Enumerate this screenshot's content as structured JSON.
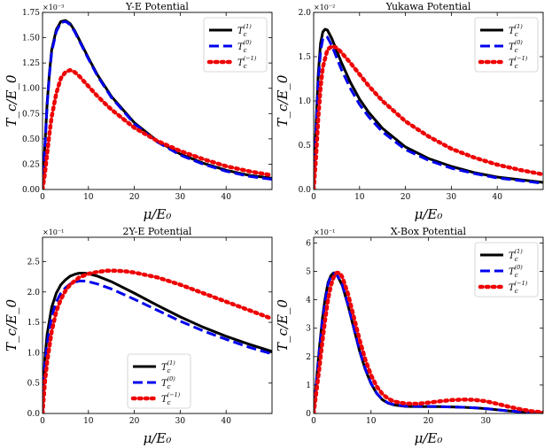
{
  "colors": {
    "black": "#000000",
    "blue": "#0000ee",
    "red": "#ee0000"
  },
  "chart_data": [
    {
      "type": "line",
      "title": "Y-E Potential",
      "xlabel": "μ/E₀",
      "ylabel": "T_c/E_0",
      "multiplier": "×10⁻³",
      "xlim": [
        0,
        50
      ],
      "ylim": [
        0,
        1.75
      ],
      "xticks": [
        0,
        10,
        20,
        30,
        40
      ],
      "yticks": [
        0.0,
        0.25,
        0.5,
        0.75,
        1.0,
        1.25,
        1.5,
        1.75
      ],
      "ytick_labels": [
        "0.00",
        "0.25",
        "0.50",
        "0.75",
        "1.00",
        "1.25",
        "1.50",
        "1.75"
      ],
      "legend_loc": "top-right",
      "series": [
        {
          "name": "T_c^(1)",
          "label_base": "T",
          "label_sub": "c",
          "label_sup": "(1)",
          "style": "solid",
          "color": "#000000",
          "x": [
            0,
            0.5,
            1,
            1.5,
            2,
            3,
            4,
            5,
            6,
            7,
            8,
            10,
            12,
            15,
            20,
            25,
            30,
            35,
            40,
            45,
            50
          ],
          "y": [
            0,
            0.42,
            0.85,
            1.15,
            1.38,
            1.58,
            1.66,
            1.67,
            1.64,
            1.57,
            1.48,
            1.3,
            1.13,
            0.92,
            0.66,
            0.48,
            0.35,
            0.26,
            0.19,
            0.14,
            0.11
          ]
        },
        {
          "name": "T_c^(0)",
          "label_base": "T",
          "label_sub": "c",
          "label_sup": "(0)",
          "style": "dashed",
          "color": "#0000ee",
          "x": [
            0,
            0.5,
            1,
            1.5,
            2,
            3,
            4,
            5,
            6,
            7,
            8,
            10,
            12,
            15,
            20,
            25,
            30,
            35,
            40,
            45,
            50
          ],
          "y": [
            0,
            0.4,
            0.83,
            1.13,
            1.36,
            1.56,
            1.65,
            1.66,
            1.63,
            1.56,
            1.47,
            1.29,
            1.12,
            0.91,
            0.65,
            0.47,
            0.34,
            0.25,
            0.18,
            0.13,
            0.1
          ]
        },
        {
          "name": "T_c^(-1)",
          "label_base": "T",
          "label_sub": "c",
          "label_sup": "(−1)",
          "style": "dotted",
          "color": "#ee0000",
          "x": [
            0,
            0.5,
            1,
            1.5,
            2,
            3,
            4,
            5,
            6,
            7,
            8,
            10,
            12,
            15,
            20,
            25,
            30,
            35,
            40,
            45,
            50
          ],
          "y": [
            0,
            0.15,
            0.35,
            0.55,
            0.72,
            0.95,
            1.1,
            1.16,
            1.18,
            1.16,
            1.12,
            1.02,
            0.92,
            0.79,
            0.61,
            0.48,
            0.38,
            0.3,
            0.23,
            0.18,
            0.14
          ]
        }
      ]
    },
    {
      "type": "line",
      "title": "Yukawa Potential",
      "xlabel": "μ/E₀",
      "ylabel": "T_c/E_0",
      "multiplier": "×10⁻²",
      "xlim": [
        0,
        50
      ],
      "ylim": [
        0,
        2.0
      ],
      "xticks": [
        0,
        10,
        20,
        30,
        40
      ],
      "yticks": [
        0.0,
        0.5,
        1.0,
        1.5,
        2.0
      ],
      "ytick_labels": [
        "0.0",
        "0.5",
        "1.0",
        "1.5",
        "2.0"
      ],
      "legend_loc": "top-right",
      "series": [
        {
          "name": "T_c^(1)",
          "label_base": "T",
          "label_sub": "c",
          "label_sup": "(1)",
          "style": "solid",
          "color": "#000000",
          "x": [
            0,
            0.5,
            1,
            1.5,
            2,
            2.5,
            3,
            4,
            5,
            6,
            8,
            10,
            12,
            15,
            20,
            25,
            30,
            35,
            40,
            45,
            50
          ],
          "y": [
            0,
            0.7,
            1.3,
            1.65,
            1.78,
            1.81,
            1.8,
            1.7,
            1.57,
            1.44,
            1.21,
            1.02,
            0.87,
            0.69,
            0.48,
            0.35,
            0.26,
            0.19,
            0.14,
            0.11,
            0.08
          ]
        },
        {
          "name": "T_c^(0)",
          "label_base": "T",
          "label_sub": "c",
          "label_sup": "(0)",
          "style": "dashed",
          "color": "#0000ee",
          "x": [
            0,
            0.5,
            1,
            1.5,
            2,
            2.5,
            3,
            4,
            5,
            6,
            8,
            10,
            12,
            15,
            20,
            25,
            30,
            35,
            40,
            45,
            50
          ],
          "y": [
            0,
            0.65,
            1.22,
            1.56,
            1.7,
            1.73,
            1.72,
            1.62,
            1.49,
            1.36,
            1.14,
            0.96,
            0.82,
            0.65,
            0.45,
            0.33,
            0.24,
            0.18,
            0.13,
            0.1,
            0.07
          ]
        },
        {
          "name": "T_c^(-1)",
          "label_base": "T",
          "label_sub": "c",
          "label_sup": "(−1)",
          "style": "dotted",
          "color": "#ee0000",
          "x": [
            0,
            0.5,
            1,
            1.5,
            2,
            3,
            4,
            5,
            6,
            8,
            10,
            12,
            15,
            20,
            25,
            30,
            35,
            40,
            45,
            50
          ],
          "y": [
            0,
            0.35,
            0.8,
            1.15,
            1.38,
            1.58,
            1.62,
            1.6,
            1.55,
            1.43,
            1.3,
            1.17,
            1.0,
            0.77,
            0.6,
            0.46,
            0.36,
            0.28,
            0.22,
            0.17
          ]
        }
      ]
    },
    {
      "type": "line",
      "title": "2Y-E Potential",
      "xlabel": "μ/E₀",
      "ylabel": "T_c/E_0",
      "multiplier": "×10⁻¹",
      "xlim": [
        0,
        50
      ],
      "ylim": [
        0,
        2.9
      ],
      "xticks": [
        0,
        10,
        20,
        30,
        40
      ],
      "yticks": [
        0.0,
        0.5,
        1.0,
        1.5,
        2.0,
        2.5
      ],
      "ytick_labels": [
        "0.0",
        "0.5",
        "1.0",
        "1.5",
        "2.0",
        "2.5"
      ],
      "legend_loc": "lower-center",
      "series": [
        {
          "name": "T_c^(1)",
          "label_base": "T",
          "label_sub": "c",
          "label_sup": "(1)",
          "style": "solid",
          "color": "#000000",
          "x": [
            0,
            0.5,
            1,
            2,
            3,
            4,
            5,
            6,
            7,
            8,
            9,
            10,
            12,
            15,
            20,
            25,
            30,
            35,
            40,
            45,
            50
          ],
          "y": [
            0,
            0.9,
            1.3,
            1.75,
            1.98,
            2.12,
            2.2,
            2.26,
            2.29,
            2.31,
            2.31,
            2.3,
            2.26,
            2.17,
            1.98,
            1.78,
            1.59,
            1.42,
            1.27,
            1.14,
            1.02
          ]
        },
        {
          "name": "T_c^(0)",
          "label_base": "T",
          "label_sub": "c",
          "label_sup": "(0)",
          "style": "dashed",
          "color": "#0000ee",
          "x": [
            0,
            0.5,
            1,
            2,
            3,
            4,
            5,
            6,
            7,
            8,
            9,
            10,
            12,
            15,
            20,
            25,
            30,
            35,
            40,
            45,
            50
          ],
          "y": [
            0,
            0.8,
            1.15,
            1.6,
            1.84,
            1.98,
            2.07,
            2.13,
            2.16,
            2.18,
            2.18,
            2.17,
            2.13,
            2.05,
            1.88,
            1.7,
            1.52,
            1.36,
            1.22,
            1.09,
            0.98
          ]
        },
        {
          "name": "T_c^(-1)",
          "label_base": "T",
          "label_sub": "c",
          "label_sup": "(−1)",
          "style": "dotted",
          "color": "#ee0000",
          "x": [
            0,
            0.5,
            1,
            2,
            3,
            4,
            5,
            6,
            8,
            10,
            12,
            14,
            16,
            18,
            20,
            25,
            30,
            35,
            40,
            45,
            50
          ],
          "y": [
            0,
            0.5,
            0.85,
            1.35,
            1.68,
            1.88,
            2.02,
            2.12,
            2.24,
            2.3,
            2.33,
            2.35,
            2.35,
            2.34,
            2.32,
            2.24,
            2.12,
            1.98,
            1.84,
            1.7,
            1.56
          ]
        }
      ]
    },
    {
      "type": "line",
      "title": "X-Box Potential",
      "xlabel": "μ/E₀",
      "ylabel": "T_c/E_0",
      "multiplier": "×10⁻¹",
      "xlim": [
        0,
        40
      ],
      "ylim": [
        0,
        6.2
      ],
      "xticks": [
        0,
        10,
        20,
        30
      ],
      "yticks": [
        0,
        1,
        2,
        3,
        4,
        5,
        6
      ],
      "ytick_labels": [
        "0",
        "1",
        "2",
        "3",
        "4",
        "5",
        "6"
      ],
      "legend_loc": "top-right",
      "series": [
        {
          "name": "T_c^(1)",
          "label_base": "T",
          "label_sub": "c",
          "label_sup": "(1)",
          "style": "solid",
          "color": "#000000",
          "x": [
            0,
            0.5,
            1,
            1.5,
            2,
            2.5,
            3,
            3.5,
            4,
            5,
            6,
            7,
            8,
            9,
            10,
            11,
            12,
            13,
            14,
            16,
            18,
            20,
            22,
            24,
            26,
            28,
            30,
            32,
            34,
            36,
            38,
            40
          ],
          "y": [
            0,
            1.2,
            2.3,
            3.3,
            4.05,
            4.6,
            4.85,
            4.95,
            4.9,
            4.5,
            3.8,
            3.0,
            2.2,
            1.55,
            1.05,
            0.7,
            0.48,
            0.36,
            0.3,
            0.25,
            0.24,
            0.24,
            0.24,
            0.23,
            0.22,
            0.2,
            0.17,
            0.13,
            0.09,
            0.06,
            0.04,
            0.02
          ]
        },
        {
          "name": "T_c^(0)",
          "label_base": "T",
          "label_sub": "c",
          "label_sup": "(0)",
          "style": "dashed",
          "color": "#0000ee",
          "x": [
            0,
            0.5,
            1,
            1.5,
            2,
            2.5,
            3,
            3.5,
            4,
            5,
            6,
            7,
            8,
            9,
            10,
            11,
            12,
            13,
            14,
            16,
            18,
            20,
            22,
            24,
            26,
            28,
            30,
            32,
            34,
            36,
            38,
            40
          ],
          "y": [
            0,
            1.15,
            2.2,
            3.2,
            3.95,
            4.55,
            4.82,
            4.93,
            4.9,
            4.52,
            3.83,
            3.03,
            2.22,
            1.57,
            1.06,
            0.71,
            0.49,
            0.37,
            0.31,
            0.26,
            0.25,
            0.25,
            0.24,
            0.23,
            0.22,
            0.2,
            0.17,
            0.13,
            0.09,
            0.06,
            0.04,
            0.02
          ]
        },
        {
          "name": "T_c^(-1)",
          "label_base": "T",
          "label_sub": "c",
          "label_sup": "(−1)",
          "style": "dotted",
          "color": "#ee0000",
          "x": [
            0,
            0.5,
            1,
            1.5,
            2,
            2.5,
            3,
            3.5,
            4,
            4.5,
            5,
            6,
            7,
            8,
            9,
            10,
            11,
            12,
            13,
            14,
            16,
            18,
            20,
            22,
            24,
            26,
            28,
            30,
            32,
            34,
            36,
            38,
            40
          ],
          "y": [
            0,
            0.8,
            1.6,
            2.5,
            3.3,
            4.0,
            4.5,
            4.8,
            4.95,
            4.95,
            4.8,
            4.2,
            3.4,
            2.6,
            1.9,
            1.35,
            0.95,
            0.68,
            0.52,
            0.42,
            0.35,
            0.34,
            0.38,
            0.43,
            0.47,
            0.49,
            0.48,
            0.43,
            0.34,
            0.24,
            0.15,
            0.08,
            0.04
          ]
        }
      ]
    }
  ]
}
